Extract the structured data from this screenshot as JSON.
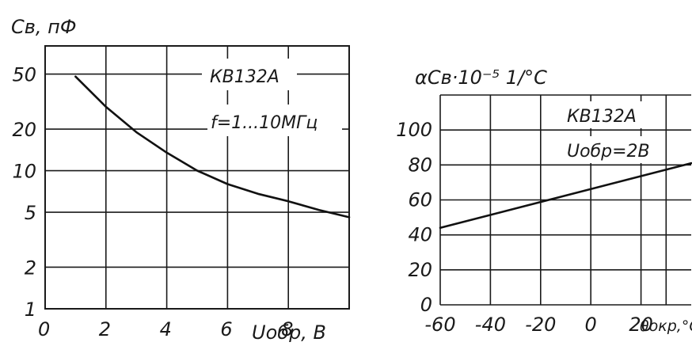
{
  "chart_data": [
    {
      "type": "line",
      "ylabel": "Cв, пФ",
      "xlabel": "Uобр, В",
      "yscale": "log",
      "grid": true,
      "xlim": [
        0,
        10
      ],
      "ylim": [
        1,
        80
      ],
      "x_ticks": [
        "0",
        "2",
        "4",
        "6",
        "8"
      ],
      "y_ticks": [
        "1",
        "2",
        "5",
        "10",
        "20",
        "50"
      ],
      "annotations": [
        "КВ132А",
        "f=1...10МГц"
      ],
      "series": [
        {
          "x": [
            1,
            2,
            3,
            4,
            5,
            6,
            7,
            8,
            9,
            10
          ],
          "y": [
            48,
            29,
            19,
            13.5,
            10,
            8,
            6.8,
            6,
            5.2,
            4.6
          ]
        }
      ]
    },
    {
      "type": "line",
      "ylabel": "αCв·10⁻⁵ 1/°C",
      "xlabel": "θокр,°C",
      "grid": true,
      "xlim": [
        -60,
        40
      ],
      "ylim": [
        0,
        120
      ],
      "x_ticks": [
        "-60",
        "-40",
        "-20",
        "0",
        "20"
      ],
      "y_ticks": [
        "0",
        "20",
        "40",
        "60",
        "80",
        "100"
      ],
      "annotations": [
        "КВ132А",
        "Uобр=2В"
      ],
      "series": [
        {
          "x": [
            -60,
            40
          ],
          "y": [
            44,
            81
          ]
        }
      ]
    }
  ]
}
